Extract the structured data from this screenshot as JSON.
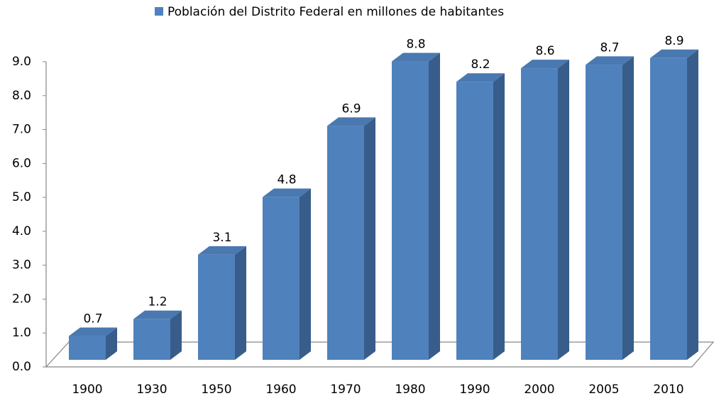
{
  "chart_data": {
    "type": "bar3d",
    "categories": [
      "1900",
      "1930",
      "1950",
      "1960",
      "1970",
      "1980",
      "1990",
      "2000",
      "2005",
      "2010"
    ],
    "series": [
      {
        "name": "Población del Distrito Federal en millones de habitantes",
        "color": "#4f81bd",
        "values": [
          0.7,
          1.2,
          3.1,
          4.8,
          6.9,
          8.8,
          8.2,
          8.6,
          8.7,
          8.9
        ]
      }
    ],
    "ylim": [
      0,
      9
    ],
    "yticks": [
      {
        "value": 0,
        "label": "0.0"
      },
      {
        "value": 1,
        "label": "1.0"
      },
      {
        "value": 2,
        "label": "2.0"
      },
      {
        "value": 3,
        "label": "3.0"
      },
      {
        "value": 4,
        "label": "4.0"
      },
      {
        "value": 5,
        "label": "5.0"
      },
      {
        "value": 6,
        "label": "6.0"
      },
      {
        "value": 7,
        "label": "7.0"
      },
      {
        "value": 8,
        "label": "8.0"
      },
      {
        "value": 9,
        "label": "9.0"
      }
    ],
    "legend": "top"
  }
}
